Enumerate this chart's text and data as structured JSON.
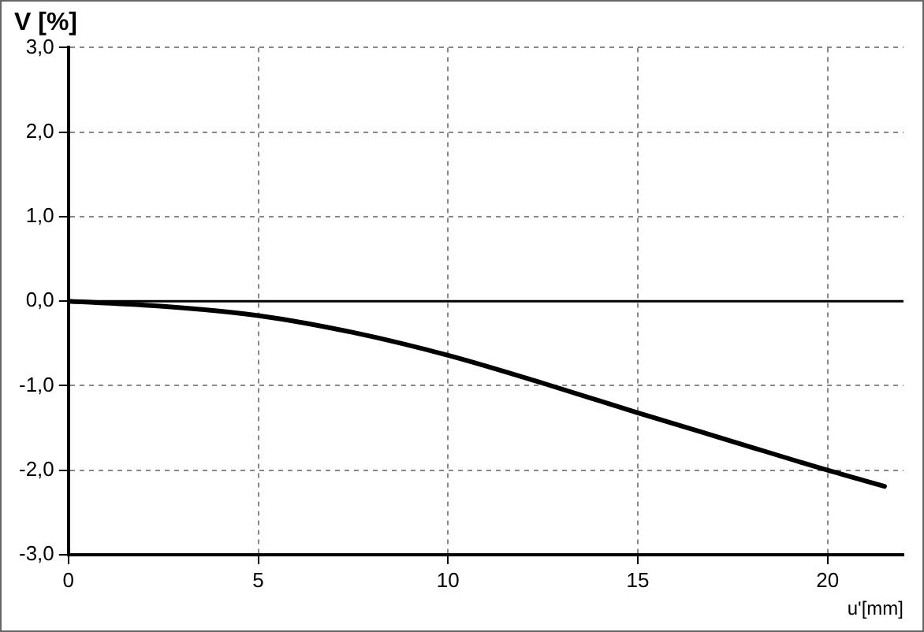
{
  "chart_data": {
    "type": "line",
    "title": "V [%]",
    "xlabel": "u'[mm]",
    "x": [
      0,
      2.5,
      5,
      7.5,
      10,
      12.5,
      15,
      17.5,
      20,
      21.5
    ],
    "series": [
      {
        "color": "#000000",
        "values": [
          0,
          -0.06,
          -0.17,
          -0.37,
          -0.64,
          -0.97,
          -1.32,
          -1.66,
          -2.0,
          -2.19
        ]
      }
    ],
    "xlim": [
      0,
      22
    ],
    "xticks": [
      0,
      5,
      10,
      15,
      20
    ],
    "ylim": [
      -3,
      3
    ],
    "yticks": [
      {
        "value": -3,
        "label": "-3,0"
      },
      {
        "value": -2,
        "label": "-2,0"
      },
      {
        "value": -1,
        "label": "-1,0"
      },
      {
        "value": 0,
        "label": "0,0"
      },
      {
        "value": 1,
        "label": "1,0"
      },
      {
        "value": 2,
        "label": "2,0"
      },
      {
        "value": 3,
        "label": "3,0"
      }
    ],
    "ref_lines": [
      {
        "axis": "y",
        "value": 0,
        "color": "#000000"
      }
    ],
    "grid": true,
    "legend": false,
    "marker": "none",
    "line_style": "solid"
  }
}
